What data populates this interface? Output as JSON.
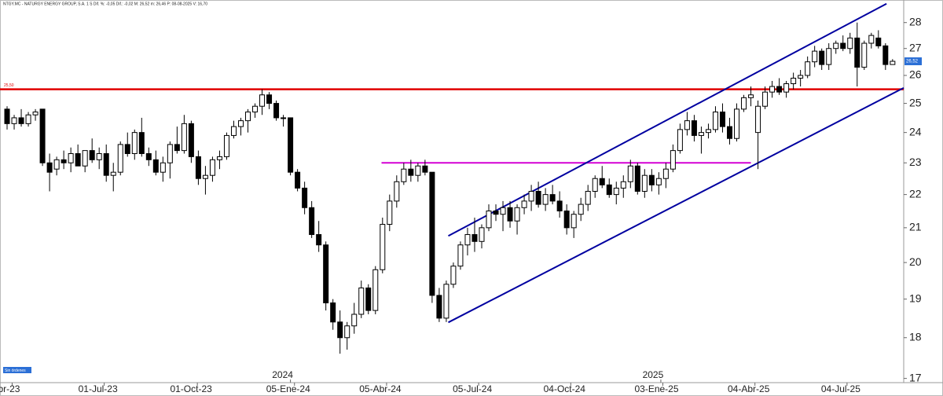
{
  "chart_data": {
    "type": "candlestick",
    "header": "NTGY.MC - NATURGY ENERGY GROUP, S.A.  1 S  Dif. %: -0,05  Dif.: -0,02  M: 26,52  m: 26,46  P: 08-08-2025  V: 16,70",
    "footer_badge": "Sin órdenes",
    "log_scale": true,
    "up_color": "#ffffff",
    "down_color": "#000000",
    "x": [
      "2023-03-27",
      "2023-04-03",
      "2023-04-10",
      "2023-04-17",
      "2023-04-24",
      "2023-05-01",
      "2023-05-08",
      "2023-05-15",
      "2023-05-22",
      "2023-05-29",
      "2023-06-05",
      "2023-06-12",
      "2023-06-19",
      "2023-06-26",
      "2023-07-03",
      "2023-07-10",
      "2023-07-17",
      "2023-07-24",
      "2023-07-31",
      "2023-08-07",
      "2023-08-14",
      "2023-08-21",
      "2023-08-28",
      "2023-09-04",
      "2023-09-11",
      "2023-09-18",
      "2023-09-25",
      "2023-10-02",
      "2023-10-09",
      "2023-10-16",
      "2023-10-23",
      "2023-10-30",
      "2023-11-06",
      "2023-11-13",
      "2023-11-20",
      "2023-11-27",
      "2023-12-04",
      "2023-12-11",
      "2023-12-18",
      "2023-12-25",
      "2024-01-01",
      "2024-01-08",
      "2024-01-15",
      "2024-01-22",
      "2024-01-29",
      "2024-02-05",
      "2024-02-12",
      "2024-02-19",
      "2024-02-26",
      "2024-03-04",
      "2024-03-11",
      "2024-03-18",
      "2024-03-25",
      "2024-04-01",
      "2024-04-08",
      "2024-04-15",
      "2024-04-22",
      "2024-04-29",
      "2024-05-06",
      "2024-05-13",
      "2024-05-20",
      "2024-05-27",
      "2024-06-03",
      "2024-06-10",
      "2024-06-17",
      "2024-06-24",
      "2024-07-01",
      "2024-07-08",
      "2024-07-15",
      "2024-07-22",
      "2024-07-29",
      "2024-08-05",
      "2024-08-12",
      "2024-08-19",
      "2024-08-26",
      "2024-09-02",
      "2024-09-09",
      "2024-09-16",
      "2024-09-23",
      "2024-09-30",
      "2024-10-07",
      "2024-10-14",
      "2024-10-21",
      "2024-10-28",
      "2024-11-04",
      "2024-11-11",
      "2024-11-18",
      "2024-11-25",
      "2024-12-02",
      "2024-12-09",
      "2024-12-16",
      "2024-12-23",
      "2024-12-30",
      "2025-01-06",
      "2025-01-13",
      "2025-01-20",
      "2025-01-27",
      "2025-02-03",
      "2025-02-10",
      "2025-02-17",
      "2025-02-24",
      "2025-03-03",
      "2025-03-10",
      "2025-03-17",
      "2025-03-24",
      "2025-03-31",
      "2025-04-07",
      "2025-04-14",
      "2025-04-21",
      "2025-04-28",
      "2025-05-05",
      "2025-05-12",
      "2025-05-19",
      "2025-05-26",
      "2025-06-02",
      "2025-06-09",
      "2025-06-16",
      "2025-06-23",
      "2025-06-30",
      "2025-07-07",
      "2025-07-14",
      "2025-07-21",
      "2025-07-28",
      "2025-08-04",
      "2025-08-11",
      "2025-08-18"
    ],
    "open": [
      24.8,
      24.3,
      24.5,
      24.3,
      24.6,
      24.8,
      23.0,
      22.8,
      23.1,
      23.0,
      23.3,
      22.9,
      23.4,
      23.1,
      23.3,
      22.6,
      22.7,
      23.6,
      23.3,
      24.0,
      23.3,
      23.1,
      22.7,
      23.0,
      23.6,
      23.4,
      24.3,
      23.2,
      22.5,
      22.6,
      23.1,
      23.2,
      23.9,
      24.2,
      24.4,
      24.7,
      24.9,
      25.3,
      25.0,
      24.5,
      24.5,
      22.7,
      22.2,
      21.6,
      20.8,
      20.5,
      18.9,
      18.4,
      18.0,
      18.3,
      18.6,
      19.3,
      18.7,
      19.8,
      21.1,
      21.8,
      22.4,
      22.8,
      22.6,
      22.9,
      22.7,
      19.1,
      18.5,
      19.4,
      19.9,
      20.5,
      20.8,
      20.6,
      21.0,
      21.5,
      21.4,
      21.6,
      21.2,
      21.6,
      21.8,
      22.1,
      21.7,
      22.0,
      21.8,
      21.5,
      21.0,
      21.4,
      21.7,
      22.1,
      22.5,
      22.3,
      22.0,
      22.2,
      22.4,
      22.9,
      22.1,
      22.6,
      22.3,
      22.5,
      22.8,
      23.4,
      24.1,
      24.4,
      23.9,
      24.0,
      24.1,
      24.7,
      24.2,
      23.8,
      24.8,
      25.2,
      24.0,
      24.9,
      25.4,
      25.6,
      25.4,
      25.7,
      25.9,
      26.0,
      26.5,
      26.9,
      26.4,
      27.0,
      27.2,
      27.0,
      27.4,
      26.3,
      27.2,
      27.4,
      27.1,
      26.4
    ],
    "high": [
      24.9,
      24.6,
      24.8,
      24.7,
      24.8,
      24.8,
      23.3,
      23.2,
      23.4,
      23.5,
      23.6,
      23.4,
      23.8,
      23.5,
      23.6,
      23.0,
      23.7,
      24.0,
      24.1,
      24.5,
      23.5,
      23.4,
      23.2,
      23.7,
      24.2,
      24.6,
      24.4,
      23.4,
      22.9,
      23.2,
      23.4,
      24.0,
      24.4,
      24.5,
      24.8,
      25.0,
      25.5,
      25.4,
      25.1,
      24.6,
      24.5,
      22.8,
      22.4,
      21.8,
      21.2,
      20.6,
      19.0,
      18.7,
      18.4,
      18.9,
      19.5,
      19.4,
      19.9,
      21.3,
      22.0,
      22.6,
      23.0,
      23.1,
      23.0,
      23.1,
      22.7,
      19.3,
      19.5,
      20.0,
      20.6,
      21.0,
      21.3,
      21.1,
      21.7,
      21.7,
      21.8,
      21.8,
      21.7,
      22.0,
      22.3,
      22.4,
      22.2,
      22.3,
      22.1,
      21.7,
      21.5,
      21.9,
      22.3,
      22.6,
      22.9,
      22.5,
      22.4,
      22.6,
      23.1,
      23.0,
      22.8,
      22.8,
      22.7,
      23.0,
      23.6,
      24.3,
      24.7,
      24.6,
      24.2,
      24.3,
      24.9,
      25.0,
      24.5,
      25.0,
      25.3,
      25.6,
      25.1,
      25.6,
      25.8,
      25.9,
      25.8,
      26.1,
      26.2,
      26.7,
      27.1,
      27.0,
      27.2,
      27.3,
      27.5,
      27.6,
      28.0,
      27.3,
      27.6,
      27.7,
      27.2,
      26.6
    ],
    "low": [
      24.1,
      24.1,
      24.2,
      24.2,
      24.4,
      22.9,
      22.1,
      22.6,
      22.8,
      22.7,
      22.9,
      22.7,
      23.0,
      22.8,
      22.4,
      22.1,
      22.6,
      23.2,
      23.1,
      23.2,
      22.9,
      22.6,
      22.4,
      22.5,
      23.3,
      23.3,
      23.0,
      22.3,
      22.0,
      22.4,
      22.8,
      23.1,
      23.8,
      23.9,
      24.0,
      24.5,
      24.6,
      24.8,
      24.4,
      24.2,
      22.6,
      22.1,
      21.4,
      20.7,
      20.3,
      18.7,
      18.2,
      17.6,
      17.7,
      18.1,
      18.5,
      18.6,
      18.6,
      19.7,
      20.9,
      21.6,
      22.3,
      22.4,
      22.4,
      22.6,
      18.9,
      18.4,
      18.4,
      19.3,
      19.8,
      20.2,
      20.3,
      20.4,
      20.9,
      21.2,
      20.9,
      21.0,
      20.8,
      21.4,
      21.5,
      21.6,
      21.5,
      21.7,
      21.3,
      20.8,
      20.7,
      21.2,
      21.5,
      21.9,
      22.2,
      21.9,
      21.7,
      21.9,
      22.2,
      22.0,
      21.9,
      22.1,
      22.0,
      22.2,
      22.7,
      23.3,
      23.9,
      23.7,
      23.3,
      23.8,
      24.0,
      24.0,
      23.6,
      23.7,
      24.7,
      24.9,
      22.8,
      24.8,
      25.2,
      25.3,
      25.2,
      25.5,
      25.6,
      25.9,
      26.3,
      26.2,
      26.2,
      26.8,
      26.9,
      26.8,
      25.6,
      26.2,
      27.0,
      27.0,
      26.2,
      26.4
    ],
    "close": [
      24.3,
      24.5,
      24.3,
      24.6,
      24.7,
      23.0,
      22.7,
      23.1,
      23.0,
      23.3,
      22.9,
      23.4,
      23.1,
      23.3,
      22.6,
      22.7,
      23.6,
      23.3,
      24.0,
      23.3,
      23.1,
      22.7,
      23.0,
      23.6,
      23.4,
      24.3,
      23.2,
      22.5,
      22.6,
      23.1,
      23.2,
      23.9,
      24.2,
      24.4,
      24.7,
      24.9,
      25.3,
      25.0,
      24.5,
      24.5,
      22.7,
      22.2,
      21.6,
      20.8,
      20.5,
      18.9,
      18.4,
      18.0,
      18.3,
      18.6,
      19.3,
      18.7,
      19.8,
      21.1,
      21.8,
      22.4,
      22.8,
      22.6,
      22.9,
      22.7,
      19.1,
      18.5,
      19.4,
      19.9,
      20.5,
      20.8,
      20.6,
      21.0,
      21.5,
      21.4,
      21.6,
      21.2,
      21.6,
      21.8,
      22.1,
      21.7,
      22.0,
      21.8,
      21.5,
      21.0,
      21.4,
      21.7,
      22.1,
      22.5,
      22.3,
      22.0,
      22.2,
      22.4,
      22.9,
      22.1,
      22.6,
      22.3,
      22.5,
      22.8,
      23.4,
      24.1,
      24.4,
      23.9,
      24.0,
      24.1,
      24.7,
      24.2,
      23.8,
      24.8,
      25.2,
      25.3,
      24.9,
      25.4,
      25.6,
      25.4,
      25.7,
      25.9,
      26.0,
      26.5,
      26.9,
      26.4,
      27.0,
      27.2,
      27.0,
      27.4,
      26.3,
      27.2,
      27.5,
      27.1,
      26.4,
      26.52
    ],
    "last_price": {
      "value": 26.52,
      "label": "26,52"
    },
    "xlim": [
      "2023-03-20",
      "2025-08-29"
    ],
    "xticks": [
      {
        "value": "2023-04-01",
        "label": "Abr-23"
      },
      {
        "value": "2023-07-01",
        "label": "01-Jul-23"
      },
      {
        "value": "2023-10-01",
        "label": "01-Oct-23"
      },
      {
        "value": "2024-01-05",
        "label": "05-Ene-24"
      },
      {
        "value": "2024-04-05",
        "label": "05-Abr-24"
      },
      {
        "value": "2024-07-05",
        "label": "05-Jul-24"
      },
      {
        "value": "2024-10-04",
        "label": "04-Oct-24"
      },
      {
        "value": "2025-01-03",
        "label": "03-Ene-25"
      },
      {
        "value": "2025-04-04",
        "label": "04-Abr-25"
      },
      {
        "value": "2025-07-04",
        "label": "04-Jul-25"
      }
    ],
    "year_labels": [
      {
        "value": "2024-01-01",
        "label": "2024"
      },
      {
        "value": "2025-01-01",
        "label": "2025"
      }
    ],
    "ylim": [
      16.9,
      28.9
    ],
    "yticks": [
      17,
      18,
      19,
      20,
      21,
      22,
      23,
      24,
      25,
      26,
      27,
      28
    ],
    "hlines": [
      {
        "value": 25.5,
        "label": "25,50",
        "color": "#e00000"
      }
    ],
    "segments": [
      {
        "color": "#d400d4",
        "x": [
          "2024-03-31",
          "2025-03-31"
        ],
        "y": [
          23.0,
          23.0
        ]
      },
      {
        "color": "#0000a0",
        "x": [
          "2024-06-05",
          "2025-08-12"
        ],
        "y": [
          20.76,
          28.75
        ]
      },
      {
        "color": "#0000a0",
        "x": [
          "2024-06-05",
          "2025-08-29"
        ],
        "y": [
          18.39,
          25.55
        ]
      }
    ]
  }
}
